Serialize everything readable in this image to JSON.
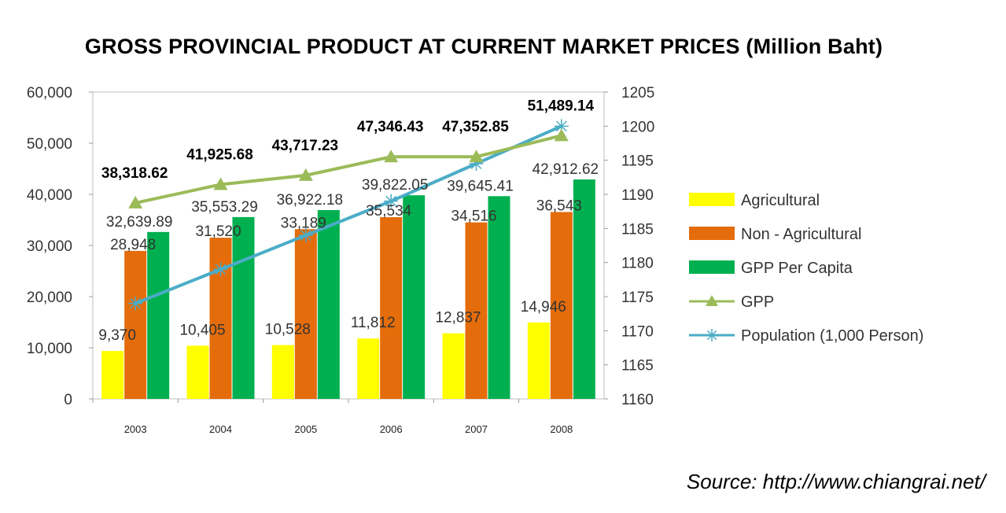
{
  "chart_data": {
    "type": "bar",
    "title": "GROSS PROVINCIAL PRODUCT AT CURRENT MARKET PRICES (Million Baht)",
    "categories": [
      "2003",
      "2004",
      "2005",
      "2006",
      "2007",
      "2008"
    ],
    "ylim": [
      0,
      60000
    ],
    "y_ticks": [
      "0",
      "10,000",
      "20,000",
      "30,000",
      "40,000",
      "50,000",
      "60,000"
    ],
    "y2lim": [
      1160,
      1205
    ],
    "y2_ticks": [
      "1160",
      "1165",
      "1170",
      "1175",
      "1180",
      "1185",
      "1190",
      "1195",
      "1200",
      "1205"
    ],
    "bar_series": [
      {
        "name": "Agricultural",
        "color": "#ffff00",
        "values": [
          9370,
          10405,
          10528,
          11812,
          12837,
          14946
        ],
        "labels": [
          "9,370",
          "10,405",
          "10,528",
          "11,812",
          "12,837",
          "14,946"
        ]
      },
      {
        "name": "Non - Agricultural",
        "color": "#e46c0a",
        "values": [
          28948,
          31520,
          33189,
          35534,
          34516,
          36543
        ],
        "labels": [
          "28,948",
          "31,520",
          "33,189",
          "35,534",
          "34,516",
          "36,543"
        ]
      },
      {
        "name": "GPP Per Capita",
        "color": "#00b050",
        "values": [
          32639.89,
          35553.29,
          36922.18,
          39822.05,
          39645.41,
          42912.62
        ],
        "labels": [
          "32,639.89",
          "35,553.29",
          "36,922.18",
          "39,822.05",
          "39,645.41",
          "42,912.62"
        ]
      }
    ],
    "line_series": [
      {
        "name": "GPP",
        "color": "#9bbb59",
        "marker": "triangle",
        "axis": "left",
        "values": [
          38318.62,
          41925.68,
          43717.23,
          47346.43,
          47352.85,
          51489.14
        ],
        "labels": [
          "38,318.62",
          "41,925.68",
          "43,717.23",
          "47,346.43",
          "47,352.85",
          "51,489.14"
        ]
      },
      {
        "name": "Population (1,000 Person)",
        "color": "#4bacc6",
        "marker": "asterisk",
        "axis": "right",
        "values": [
          1174,
          1179,
          1184,
          1189,
          1194.5,
          1200
        ]
      }
    ],
    "legend_position": "right",
    "grid": false
  },
  "source": "Source: http://www.chiangrai.net/"
}
